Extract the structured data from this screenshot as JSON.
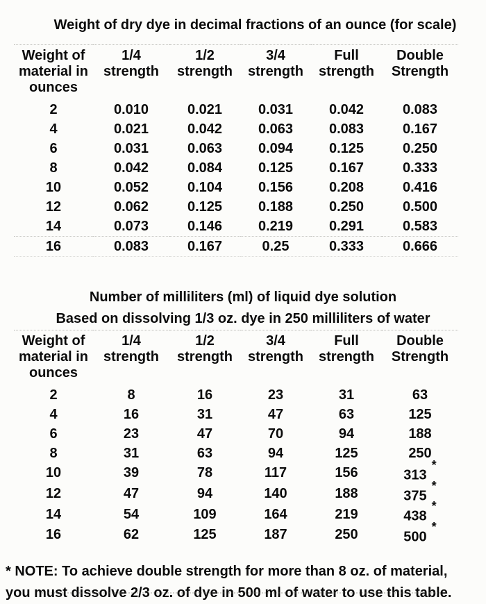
{
  "page": {
    "background_color": "#fcfcfa",
    "text_color": "#0b0b0b"
  },
  "table1": {
    "title": "Weight of dry dye in decimal fractions of an ounce (for scale)",
    "headers": [
      {
        "lines": [
          "Weight of",
          "material in",
          "ounces"
        ]
      },
      {
        "lines": [
          "1/4",
          "strength"
        ]
      },
      {
        "lines": [
          "1/2",
          "strength"
        ]
      },
      {
        "lines": [
          "3/4",
          "strength"
        ]
      },
      {
        "lines": [
          "Full",
          "strength"
        ]
      },
      {
        "lines": [
          "Double",
          "Strength"
        ]
      }
    ],
    "rows": [
      {
        "cells": [
          "2",
          "0.010",
          "0.021",
          "0.031",
          "0.042",
          "0.083"
        ],
        "asterisk": false
      },
      {
        "cells": [
          "4",
          "0.021",
          "0.042",
          "0.063",
          "0.083",
          "0.167"
        ],
        "asterisk": false
      },
      {
        "cells": [
          "6",
          "0.031",
          "0.063",
          "0.094",
          "0.125",
          "0.250"
        ],
        "asterisk": false
      },
      {
        "cells": [
          "8",
          "0.042",
          "0.084",
          "0.125",
          "0.167",
          "0.333"
        ],
        "asterisk": false
      },
      {
        "cells": [
          "10",
          "0.052",
          "0.104",
          "0.156",
          "0.208",
          "0.416"
        ],
        "asterisk": false
      },
      {
        "cells": [
          "12",
          "0.062",
          "0.125",
          "0.188",
          "0.250",
          "0.500"
        ],
        "asterisk": false
      },
      {
        "cells": [
          "14",
          "0.073",
          "0.146",
          "0.219",
          "0.291",
          "0.583"
        ],
        "asterisk": false
      },
      {
        "cells": [
          "16",
          "0.083",
          "0.167",
          "0.25",
          "0.333",
          "0.666"
        ],
        "asterisk": false
      }
    ]
  },
  "table2": {
    "title": "Number of milliliters (ml) of liquid dye solution",
    "subtitle": "Based on dissolving 1/3 oz. dye in 250 milliliters of water",
    "headers": [
      {
        "lines": [
          "Weight of",
          "material in",
          "ounces"
        ]
      },
      {
        "lines": [
          "1/4",
          "strength"
        ]
      },
      {
        "lines": [
          "1/2",
          "strength"
        ]
      },
      {
        "lines": [
          "3/4",
          "strength"
        ]
      },
      {
        "lines": [
          "Full",
          "strength"
        ]
      },
      {
        "lines": [
          "Double",
          "Strength"
        ]
      }
    ],
    "rows": [
      {
        "cells": [
          "2",
          "8",
          "16",
          "23",
          "31",
          "63"
        ],
        "asterisk": false
      },
      {
        "cells": [
          "4",
          "16",
          "31",
          "47",
          "63",
          "125"
        ],
        "asterisk": false
      },
      {
        "cells": [
          "6",
          "23",
          "47",
          "70",
          "94",
          "188"
        ],
        "asterisk": false
      },
      {
        "cells": [
          "8",
          "31",
          "63",
          "94",
          "125",
          "250"
        ],
        "asterisk": false
      },
      {
        "cells": [
          "10",
          "39",
          "78",
          "117",
          "156",
          "313"
        ],
        "asterisk": true
      },
      {
        "cells": [
          "12",
          "47",
          "94",
          "140",
          "188",
          "375"
        ],
        "asterisk": true
      },
      {
        "cells": [
          "14",
          "54",
          "109",
          "164",
          "219",
          "438"
        ],
        "asterisk": true
      },
      {
        "cells": [
          "16",
          "62",
          "125",
          "187",
          "250",
          "500"
        ],
        "asterisk": true
      }
    ]
  },
  "footnote": {
    "marker": "*",
    "line1": "* NOTE: To achieve double strength for more than 8 oz. of material,",
    "line2": "you must dissolve 2/3 oz. of dye in 500 ml of water to use this table."
  }
}
